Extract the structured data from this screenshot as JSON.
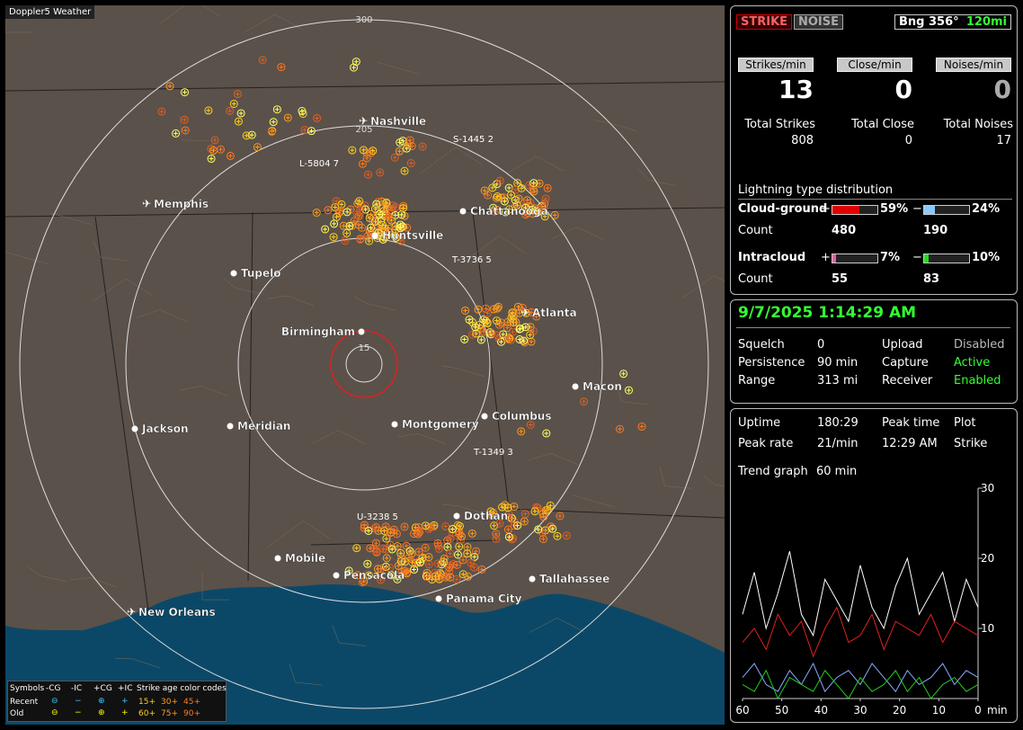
{
  "map": {
    "title": "Doppler5 Weather",
    "range_rings": [
      "300",
      "205",
      "15"
    ],
    "cities": [
      "Nashville",
      "Memphis",
      "Chattanooga",
      "Huntsville",
      "Tupelo",
      "Atlanta",
      "Birmingham",
      "Macon",
      "Jackson",
      "Meridian",
      "Montgomery",
      "Columbus",
      "Dothan",
      "Mobile",
      "Pensacola",
      "Tallahassee",
      "Panama City",
      "New Orleans"
    ],
    "strike_labels": [
      "S-1445 2",
      "L-5804 7",
      "T-3736 5",
      "T-1349 3",
      "U-3238 5"
    ],
    "legend": {
      "header": [
        "Symbols",
        "-CG",
        "-IC",
        "+CG",
        "+IC",
        "Strike age color codes"
      ],
      "rows": [
        {
          "name": "Recent",
          "ages": [
            "15+",
            "30+",
            "45+"
          ]
        },
        {
          "name": "Old",
          "ages": [
            "60+",
            "75+",
            "90+"
          ]
        }
      ]
    }
  },
  "top": {
    "buttons": [
      "STRIKE",
      "NOISE"
    ],
    "bearing": "Bng 356°",
    "distance": "120mi",
    "rates": [
      {
        "label": "Strikes/min",
        "value": "13",
        "total_label": "Total Strikes",
        "total": "808"
      },
      {
        "label": "Close/min",
        "value": "0",
        "total_label": "Total Close",
        "total": "0"
      },
      {
        "label": "Noises/min",
        "value": "0",
        "total_label": "Total Noises",
        "total": "17"
      }
    ],
    "distribution": {
      "title": "Lightning type distribution",
      "count_label": "Count",
      "rows": [
        {
          "name": "Cloud-ground",
          "plus_sign": "+",
          "minus_sign": "−",
          "plus_pct": {
            "value": 59,
            "label": "59%"
          },
          "minus_pct": {
            "value": 24,
            "label": "24%"
          },
          "plus_count": "480",
          "minus_count": "190"
        },
        {
          "name": "Intracloud",
          "plus_sign": "+",
          "minus_sign": "−",
          "plus_pct": {
            "value": 7,
            "label": "7%"
          },
          "minus_pct": {
            "value": 10,
            "label": "10%"
          },
          "plus_count": "55",
          "minus_count": "83"
        }
      ]
    }
  },
  "status": {
    "datetime": "9/7/2025 1:14:29 AM",
    "rows": [
      [
        "Squelch",
        "0",
        "Upload",
        "Disabled"
      ],
      [
        "Persistence",
        "90 min",
        "Capture",
        "Active"
      ],
      [
        "Range",
        "313 mi",
        "Receiver",
        "Enabled"
      ]
    ]
  },
  "stats": {
    "rows": [
      [
        "Uptime",
        "180:29",
        "Peak time",
        "Plot"
      ],
      [
        "Peak rate",
        "21/min",
        "12:29 AM",
        "Strike"
      ]
    ],
    "trend_label": "Trend graph",
    "trend_value": "60 min",
    "chart_data": {
      "type": "line",
      "xlim": [
        60,
        0
      ],
      "xticks": [
        60,
        50,
        40,
        30,
        20,
        10,
        0
      ],
      "x_unit": "min",
      "ylim": [
        0,
        30
      ],
      "yticks": [
        10,
        20,
        30
      ],
      "x": [
        60,
        57,
        54,
        51,
        48,
        45,
        42,
        39,
        36,
        33,
        30,
        27,
        24,
        21,
        18,
        15,
        12,
        9,
        6,
        3,
        0
      ],
      "series": [
        {
          "color": "#ffffff",
          "values": [
            12,
            18,
            10,
            15,
            21,
            12,
            9,
            17,
            14,
            11,
            19,
            13,
            10,
            16,
            20,
            12,
            15,
            18,
            11,
            17,
            13
          ]
        },
        {
          "color": "#e02020",
          "values": [
            8,
            10,
            7,
            12,
            9,
            11,
            6,
            10,
            13,
            8,
            9,
            12,
            7,
            11,
            10,
            9,
            12,
            8,
            11,
            10,
            9
          ]
        },
        {
          "color": "#88aaff",
          "values": [
            3,
            5,
            2,
            1,
            4,
            2,
            5,
            1,
            3,
            4,
            2,
            5,
            3,
            1,
            4,
            2,
            3,
            5,
            2,
            4,
            3
          ]
        },
        {
          "color": "#22cc22",
          "values": [
            2,
            1,
            4,
            0,
            3,
            2,
            1,
            4,
            2,
            0,
            3,
            1,
            2,
            4,
            1,
            3,
            0,
            2,
            3,
            1,
            2
          ]
        }
      ]
    }
  }
}
